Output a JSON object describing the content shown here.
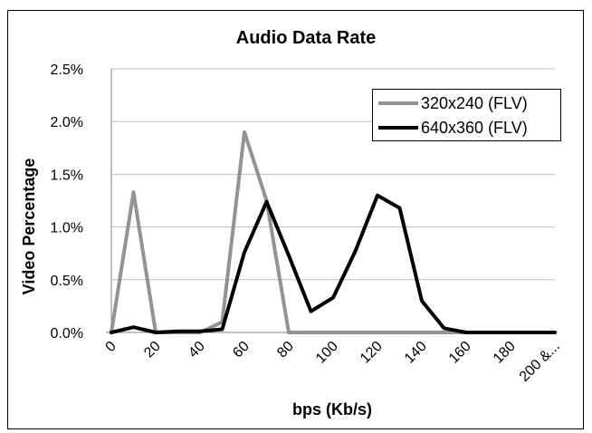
{
  "chart_data": {
    "type": "line",
    "title": "Audio Data Rate",
    "xlabel": "bps (Kb/s)",
    "ylabel": "Video Percentage",
    "categories": [
      "0",
      "10",
      "20",
      "30",
      "40",
      "50",
      "60",
      "70",
      "80",
      "90",
      "100",
      "110",
      "120",
      "130",
      "140",
      "150",
      "160",
      "170",
      "180",
      "190",
      "200 &..."
    ],
    "x_tick_labels": [
      "0",
      "20",
      "40",
      "60",
      "80",
      "100",
      "120",
      "140",
      "160",
      "180",
      "200 &..."
    ],
    "y_tick_labels": [
      "0.0%",
      "0.5%",
      "1.0%",
      "1.5%",
      "2.0%",
      "2.5%"
    ],
    "ylim": [
      0,
      2.5
    ],
    "y_unit": "%",
    "grid": true,
    "legend_position": "top-right",
    "series": [
      {
        "name": "320x240 (FLV)",
        "color": "#939393",
        "values": [
          0.0,
          1.33,
          0.0,
          0.0,
          0.0,
          0.1,
          1.9,
          1.25,
          0.0,
          0.0,
          0.0,
          0.0,
          0.0,
          0.0,
          0.0,
          0.0,
          0.0,
          0.0,
          0.0,
          0.0,
          0.0
        ]
      },
      {
        "name": "640x360 (FLV)",
        "color": "#000000",
        "values": [
          0.0,
          0.05,
          0.0,
          0.01,
          0.01,
          0.03,
          0.76,
          1.24,
          0.73,
          0.2,
          0.33,
          0.77,
          1.3,
          1.18,
          0.3,
          0.04,
          0.0,
          0.0,
          0.0,
          0.0,
          0.0
        ]
      }
    ]
  }
}
